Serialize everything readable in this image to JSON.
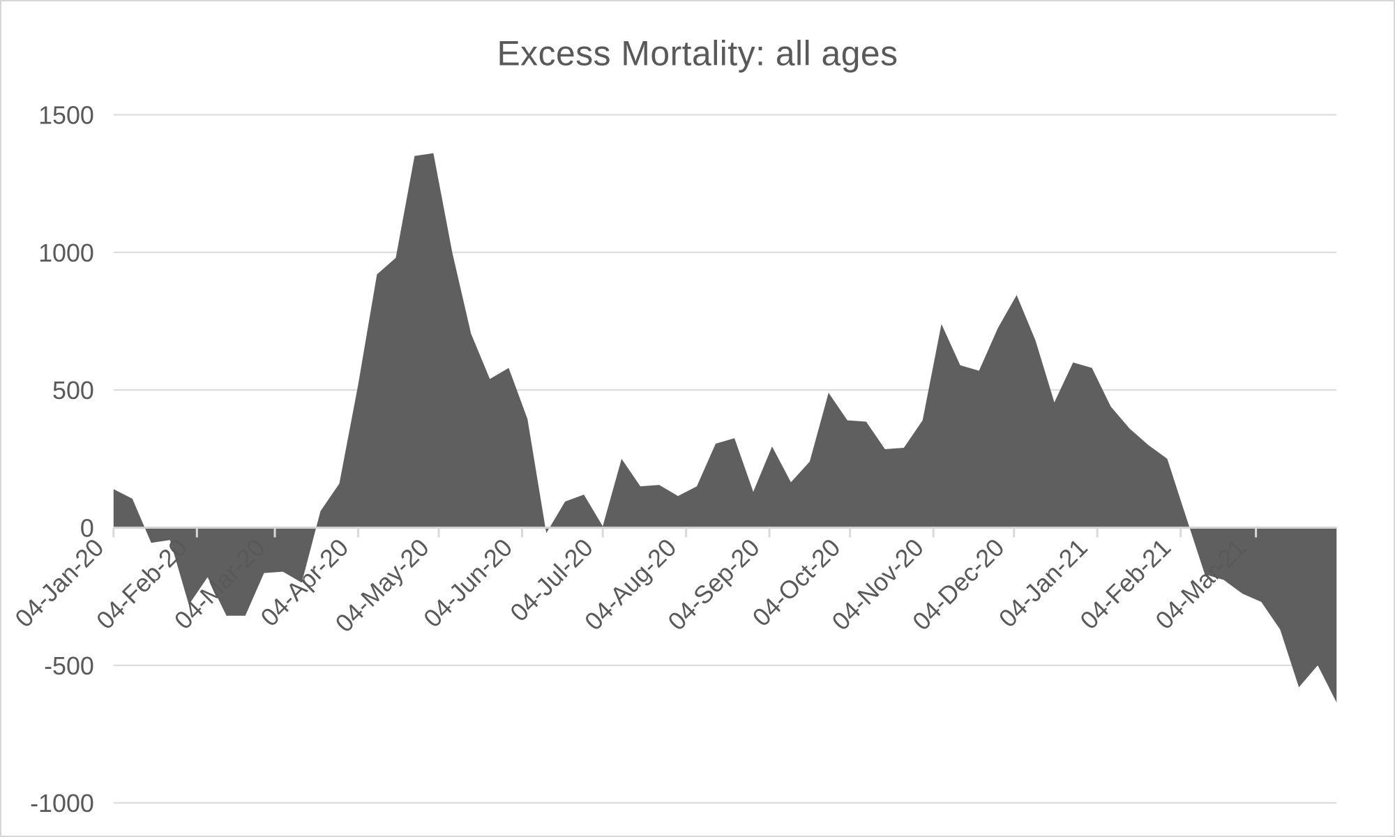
{
  "window": {
    "background_color": "#FFFFFF",
    "border_color": "#D6D6D6"
  },
  "styles": {
    "area_color": "#5F5F5F",
    "text_color": "#595959",
    "gridline_color": "#D9D9D9",
    "axis_line_color": "#D2D2D2",
    "tick_color": "#D9D9D9"
  },
  "chart_data": {
    "type": "area",
    "title": "Excess Mortality: all ages",
    "legend": "none",
    "grid": true,
    "x_axis": {
      "first_point_label": "04-Jan-20",
      "point_interval_days": 7,
      "tick_labels": [
        "04-Jan-20",
        "04-Feb-20",
        "04-Mar-20",
        "04-Apr-20",
        "04-May-20",
        "04-Jun-20",
        "04-Jul-20",
        "04-Aug-20",
        "04-Sep-20",
        "04-Oct-20",
        "04-Nov-20",
        "04-Dec-20",
        "04-Jan-21",
        "04-Feb-21",
        "04-Mar-21"
      ],
      "tick_day_offsets": [
        0,
        31,
        60,
        91,
        121,
        152,
        182,
        213,
        244,
        274,
        305,
        335,
        366,
        397,
        425
      ],
      "tick_label_rotation_deg": 45
    },
    "y_axis": {
      "tick_values": [
        1500,
        1000,
        500,
        0,
        -500,
        -1000
      ],
      "min": -1000,
      "max": 1500
    },
    "values": [
      140,
      105,
      -55,
      -45,
      -280,
      -180,
      -320,
      -320,
      -165,
      -160,
      -200,
      60,
      160,
      520,
      920,
      980,
      1350,
      1360,
      1000,
      705,
      540,
      580,
      395,
      -20,
      95,
      120,
      5,
      250,
      150,
      155,
      115,
      150,
      305,
      325,
      130,
      295,
      165,
      240,
      490,
      390,
      385,
      285,
      290,
      390,
      740,
      590,
      570,
      725,
      845,
      680,
      455,
      600,
      580,
      440,
      360,
      300,
      250,
      40,
      -170,
      -190,
      -240,
      -270,
      -370,
      -580,
      -500,
      -635
    ]
  }
}
